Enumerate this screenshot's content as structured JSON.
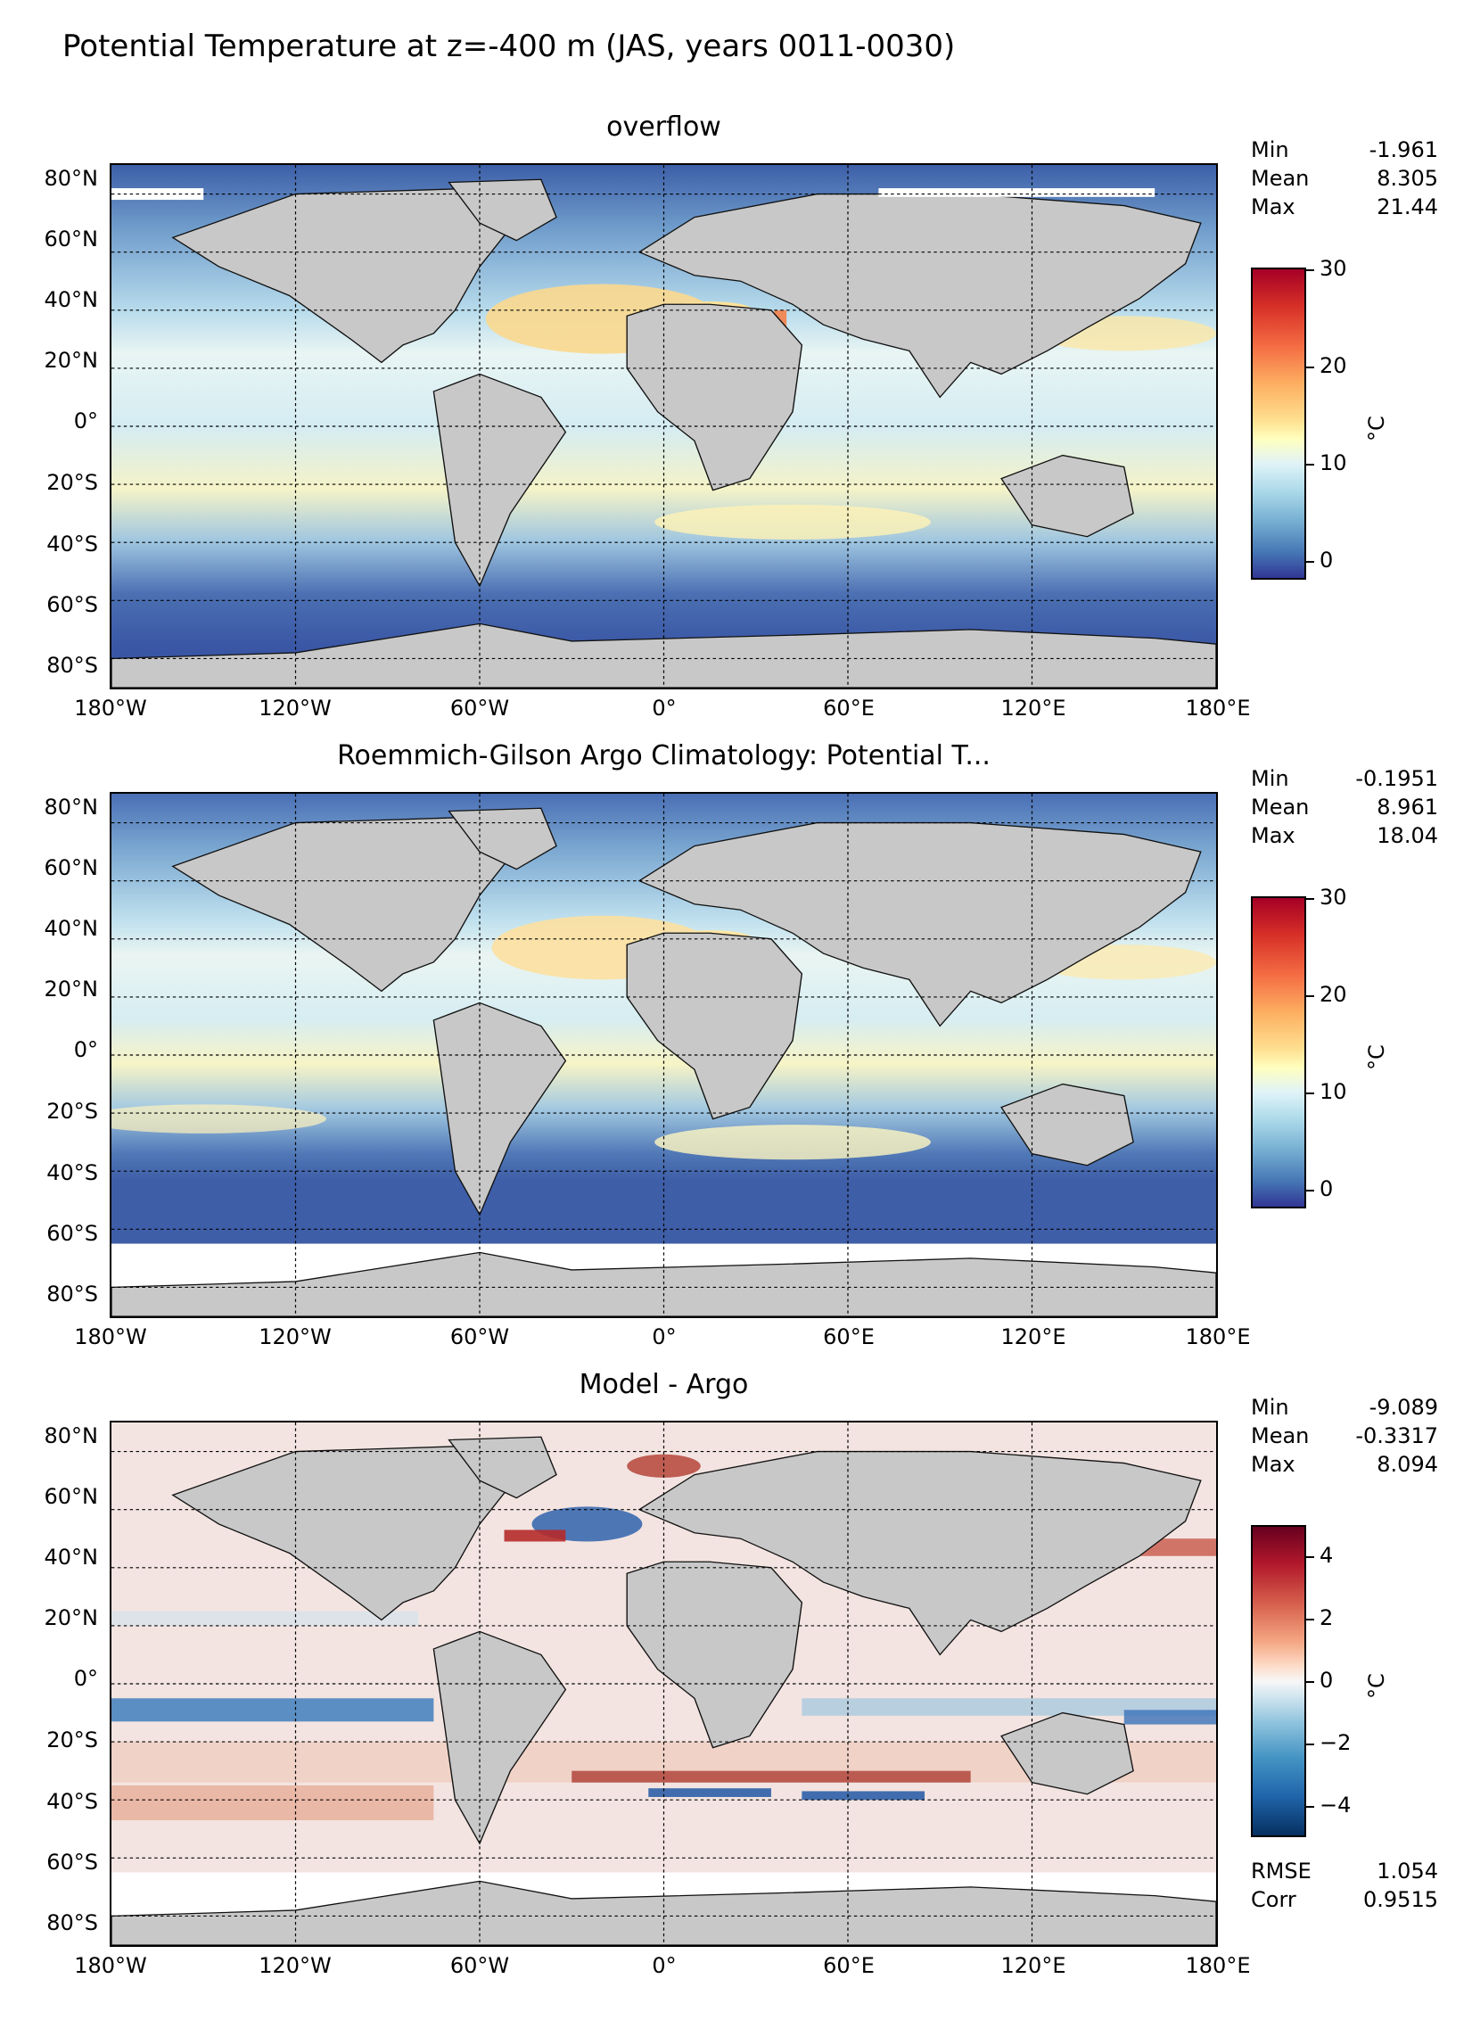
{
  "figure": {
    "title": "Potential Temperature at z=-400 m (JAS, years 0011-0030)"
  },
  "axes": {
    "lat_labels": [
      "80°N",
      "60°N",
      "40°N",
      "20°N",
      "0°",
      "20°S",
      "40°S",
      "60°S",
      "80°S"
    ],
    "lon_labels": [
      "180°W",
      "120°W",
      "60°W",
      "0°",
      "60°E",
      "120°E",
      "180°E"
    ]
  },
  "panels": [
    {
      "title": "overflow",
      "stats": [
        {
          "label": "Min",
          "value": "-1.961"
        },
        {
          "label": "Mean",
          "value": "8.305"
        },
        {
          "label": "Max",
          "value": "21.44"
        }
      ],
      "colorbar": {
        "ticks": [
          "30",
          "20",
          "10",
          "0"
        ],
        "unit": "°C",
        "colormap": "RdYlBu_r",
        "range": [
          -2,
          30
        ]
      }
    },
    {
      "title": "Roemmich-Gilson Argo Climatology: Potential T...",
      "stats": [
        {
          "label": "Min",
          "value": "-0.1951"
        },
        {
          "label": "Mean",
          "value": "8.961"
        },
        {
          "label": "Max",
          "value": "18.04"
        }
      ],
      "colorbar": {
        "ticks": [
          "30",
          "20",
          "10",
          "0"
        ],
        "unit": "°C",
        "colormap": "RdYlBu_r",
        "range": [
          -2,
          30
        ]
      }
    },
    {
      "title": "Model - Argo",
      "stats": [
        {
          "label": "Min",
          "value": "-9.089"
        },
        {
          "label": "Mean",
          "value": "-0.3317"
        },
        {
          "label": "Max",
          "value": "8.094"
        }
      ],
      "colorbar": {
        "ticks": [
          "4",
          "2",
          "0",
          "−2",
          "−4"
        ],
        "unit": "°C",
        "colormap": "RdBu_r",
        "range": [
          -5,
          5
        ]
      },
      "extra_stats": [
        {
          "label": "RMSE",
          "value": "1.054"
        },
        {
          "label": "Corr",
          "value": "0.9515"
        }
      ]
    }
  ],
  "colors": {
    "land": "#c8c8c8",
    "no_data": "#ffffff",
    "cold": "#3b5ca8",
    "warm": "#b2182b"
  }
}
